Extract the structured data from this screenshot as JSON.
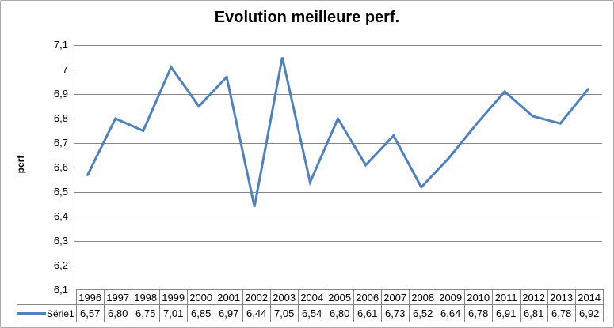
{
  "chart_data": {
    "type": "line",
    "title": "Evolution meilleure perf.",
    "xlabel": "",
    "ylabel": "perf",
    "legend": [
      "Série1"
    ],
    "legend_position": "bottom-left-in-data-table",
    "grid": true,
    "has_data_table": true,
    "ylim": [
      6.1,
      7.1
    ],
    "y_tick_step": 0.1,
    "y_tick_labels": [
      "7,1",
      "7",
      "6,9",
      "6,8",
      "6,7",
      "6,6",
      "6,5",
      "6,4",
      "6,3",
      "6,2",
      "6,1"
    ],
    "categories": [
      "1996",
      "1997",
      "1998",
      "1999",
      "2000",
      "2001",
      "2002",
      "2003",
      "2004",
      "2005",
      "2006",
      "2007",
      "2008",
      "2009",
      "2010",
      "2011",
      "2012",
      "2013",
      "2014"
    ],
    "series": [
      {
        "name": "Série1",
        "values": [
          6.57,
          6.8,
          6.75,
          7.01,
          6.85,
          6.97,
          6.44,
          7.05,
          6.54,
          6.8,
          6.61,
          6.73,
          6.52,
          6.64,
          6.78,
          6.91,
          6.81,
          6.78,
          6.92
        ],
        "display_values": [
          "6,57",
          "6,80",
          "6,75",
          "7,01",
          "6,85",
          "6,97",
          "6,44",
          "7,05",
          "6,54",
          "6,80",
          "6,61",
          "6,73",
          "6,52",
          "6,64",
          "6,78",
          "6,91",
          "6,81",
          "6,78",
          "6,92"
        ]
      }
    ],
    "colors": {
      "line": "#4F81BD",
      "gridline": "#858585",
      "axis": "#858585",
      "table_border": "#858585",
      "chart_border": "#A9A9A9",
      "text": "#000000",
      "background": "#FFFFFF"
    }
  }
}
